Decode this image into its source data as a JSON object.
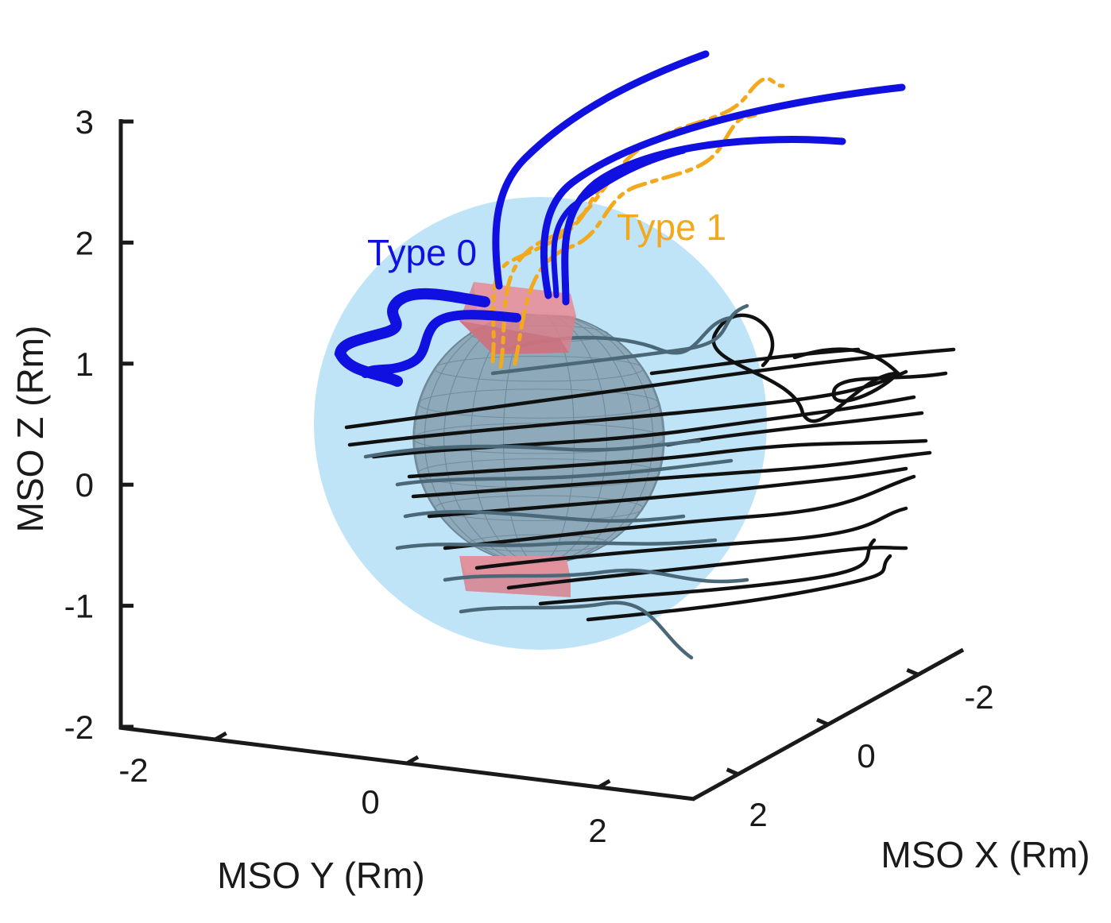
{
  "chart_data": {
    "type": "line",
    "projection": "3d",
    "axes": {
      "x": {
        "label": "MSO X (Rm)",
        "ticks": [
          "-2",
          "0",
          "2"
        ],
        "range": [
          3,
          -3
        ]
      },
      "y": {
        "label": "MSO Y (Rm)",
        "ticks": [
          "-2",
          "0",
          "2"
        ],
        "range": [
          -3,
          3
        ]
      },
      "z": {
        "label": "MSO Z (Rm)",
        "ticks": [
          "3",
          "2",
          "1",
          "0",
          "-1",
          "-2"
        ],
        "range": [
          -2,
          3
        ]
      }
    },
    "grid": false,
    "annotations": [
      {
        "text": "Type 0",
        "color": "#1010e0"
      },
      {
        "text": "Type 1",
        "color": "#f2a91e"
      }
    ],
    "objects": {
      "planet": {
        "radius_rm": 1.0,
        "color": "#7f9cae"
      },
      "outer_sphere": {
        "radius_rm": 1.8,
        "color": "#bfe4f7"
      },
      "regions": [
        {
          "color": "#d9808c"
        },
        {
          "color": "#d9808c"
        }
      ]
    },
    "colors": {
      "type0": "#1010e0",
      "type1": "#f2a91e",
      "closed": "#101010",
      "draped": "#4a6878"
    }
  }
}
